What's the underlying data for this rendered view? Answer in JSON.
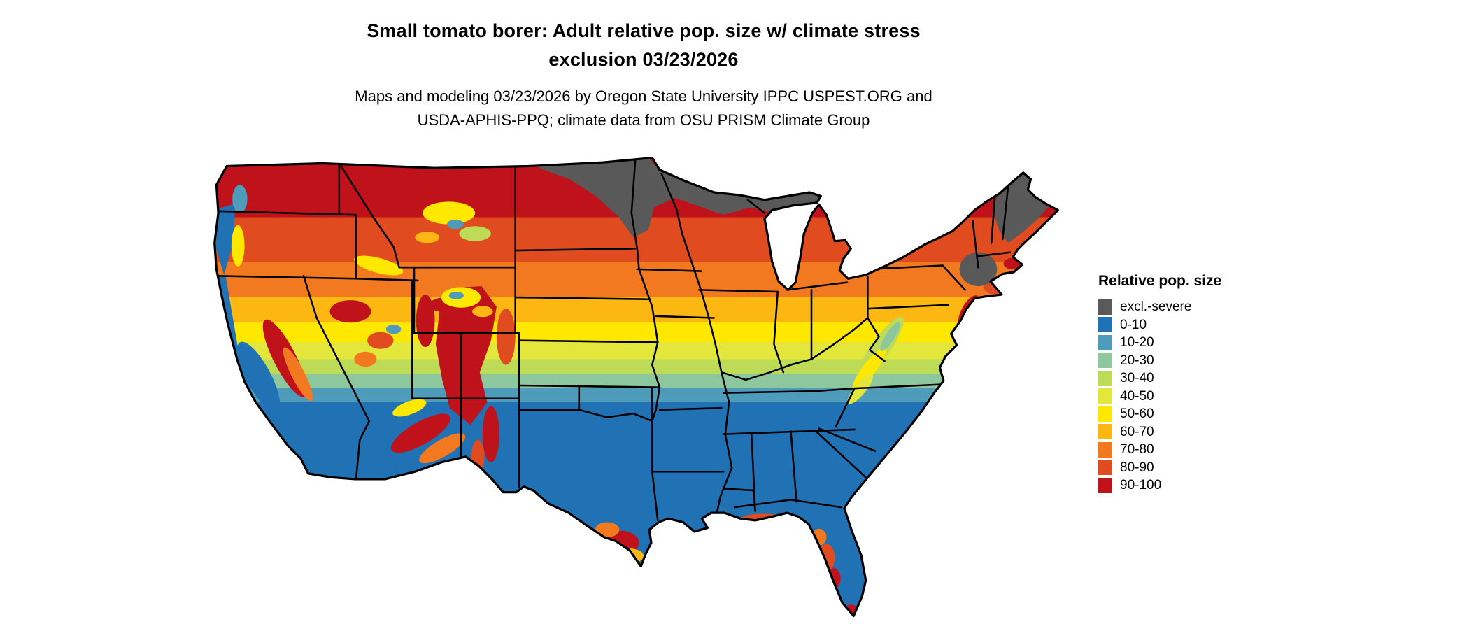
{
  "header": {
    "title_line1": "Small tomato borer: Adult relative pop. size w/ climate stress",
    "title_line2": "exclusion 03/23/2026",
    "subtitle_line1": "Maps and modeling 03/23/2026 by Oregon State University IPPC USPEST.ORG and",
    "subtitle_line2": "USDA-APHIS-PPQ; climate data from OSU PRISM Climate Group"
  },
  "legend": {
    "title": "Relative pop. size",
    "items": [
      {
        "key": "excl",
        "label": "excl.-severe",
        "color": "#595959"
      },
      {
        "key": "b0",
        "label": "0-10",
        "color": "#2171b5"
      },
      {
        "key": "b10",
        "label": "10-20",
        "color": "#4f9bba"
      },
      {
        "key": "b20",
        "label": "20-30",
        "color": "#8dc79e"
      },
      {
        "key": "b30",
        "label": "30-40",
        "color": "#bddb56"
      },
      {
        "key": "b40",
        "label": "40-50",
        "color": "#e4e73b"
      },
      {
        "key": "b50",
        "label": "50-60",
        "color": "#ffe800"
      },
      {
        "key": "b60",
        "label": "60-70",
        "color": "#fdb713"
      },
      {
        "key": "b70",
        "label": "70-80",
        "color": "#f2791f"
      },
      {
        "key": "b80",
        "label": "80-90",
        "color": "#e04b1f"
      },
      {
        "key": "b90",
        "label": "90-100",
        "color": "#bf121b"
      }
    ]
  },
  "map": {
    "region": "Continental United States",
    "type": "raster choropleth with state borders",
    "visible_pattern": {
      "north_band": [
        "90-100",
        "80-90",
        "excl.-severe"
      ],
      "transition_belt": [
        "70-80",
        "60-70",
        "50-60",
        "40-50",
        "30-40",
        "20-30",
        "10-20"
      ],
      "south_band": [
        "0-10"
      ],
      "notes": "Gray exclusion zones over northern Minnesota, northern Wisconsin, upper Michigan, the Adirondacks and northern Maine; mottled high values over western mountains with blue valleys; hotspots along south Texas, central Florida and the mid-Atlantic coast."
    }
  }
}
